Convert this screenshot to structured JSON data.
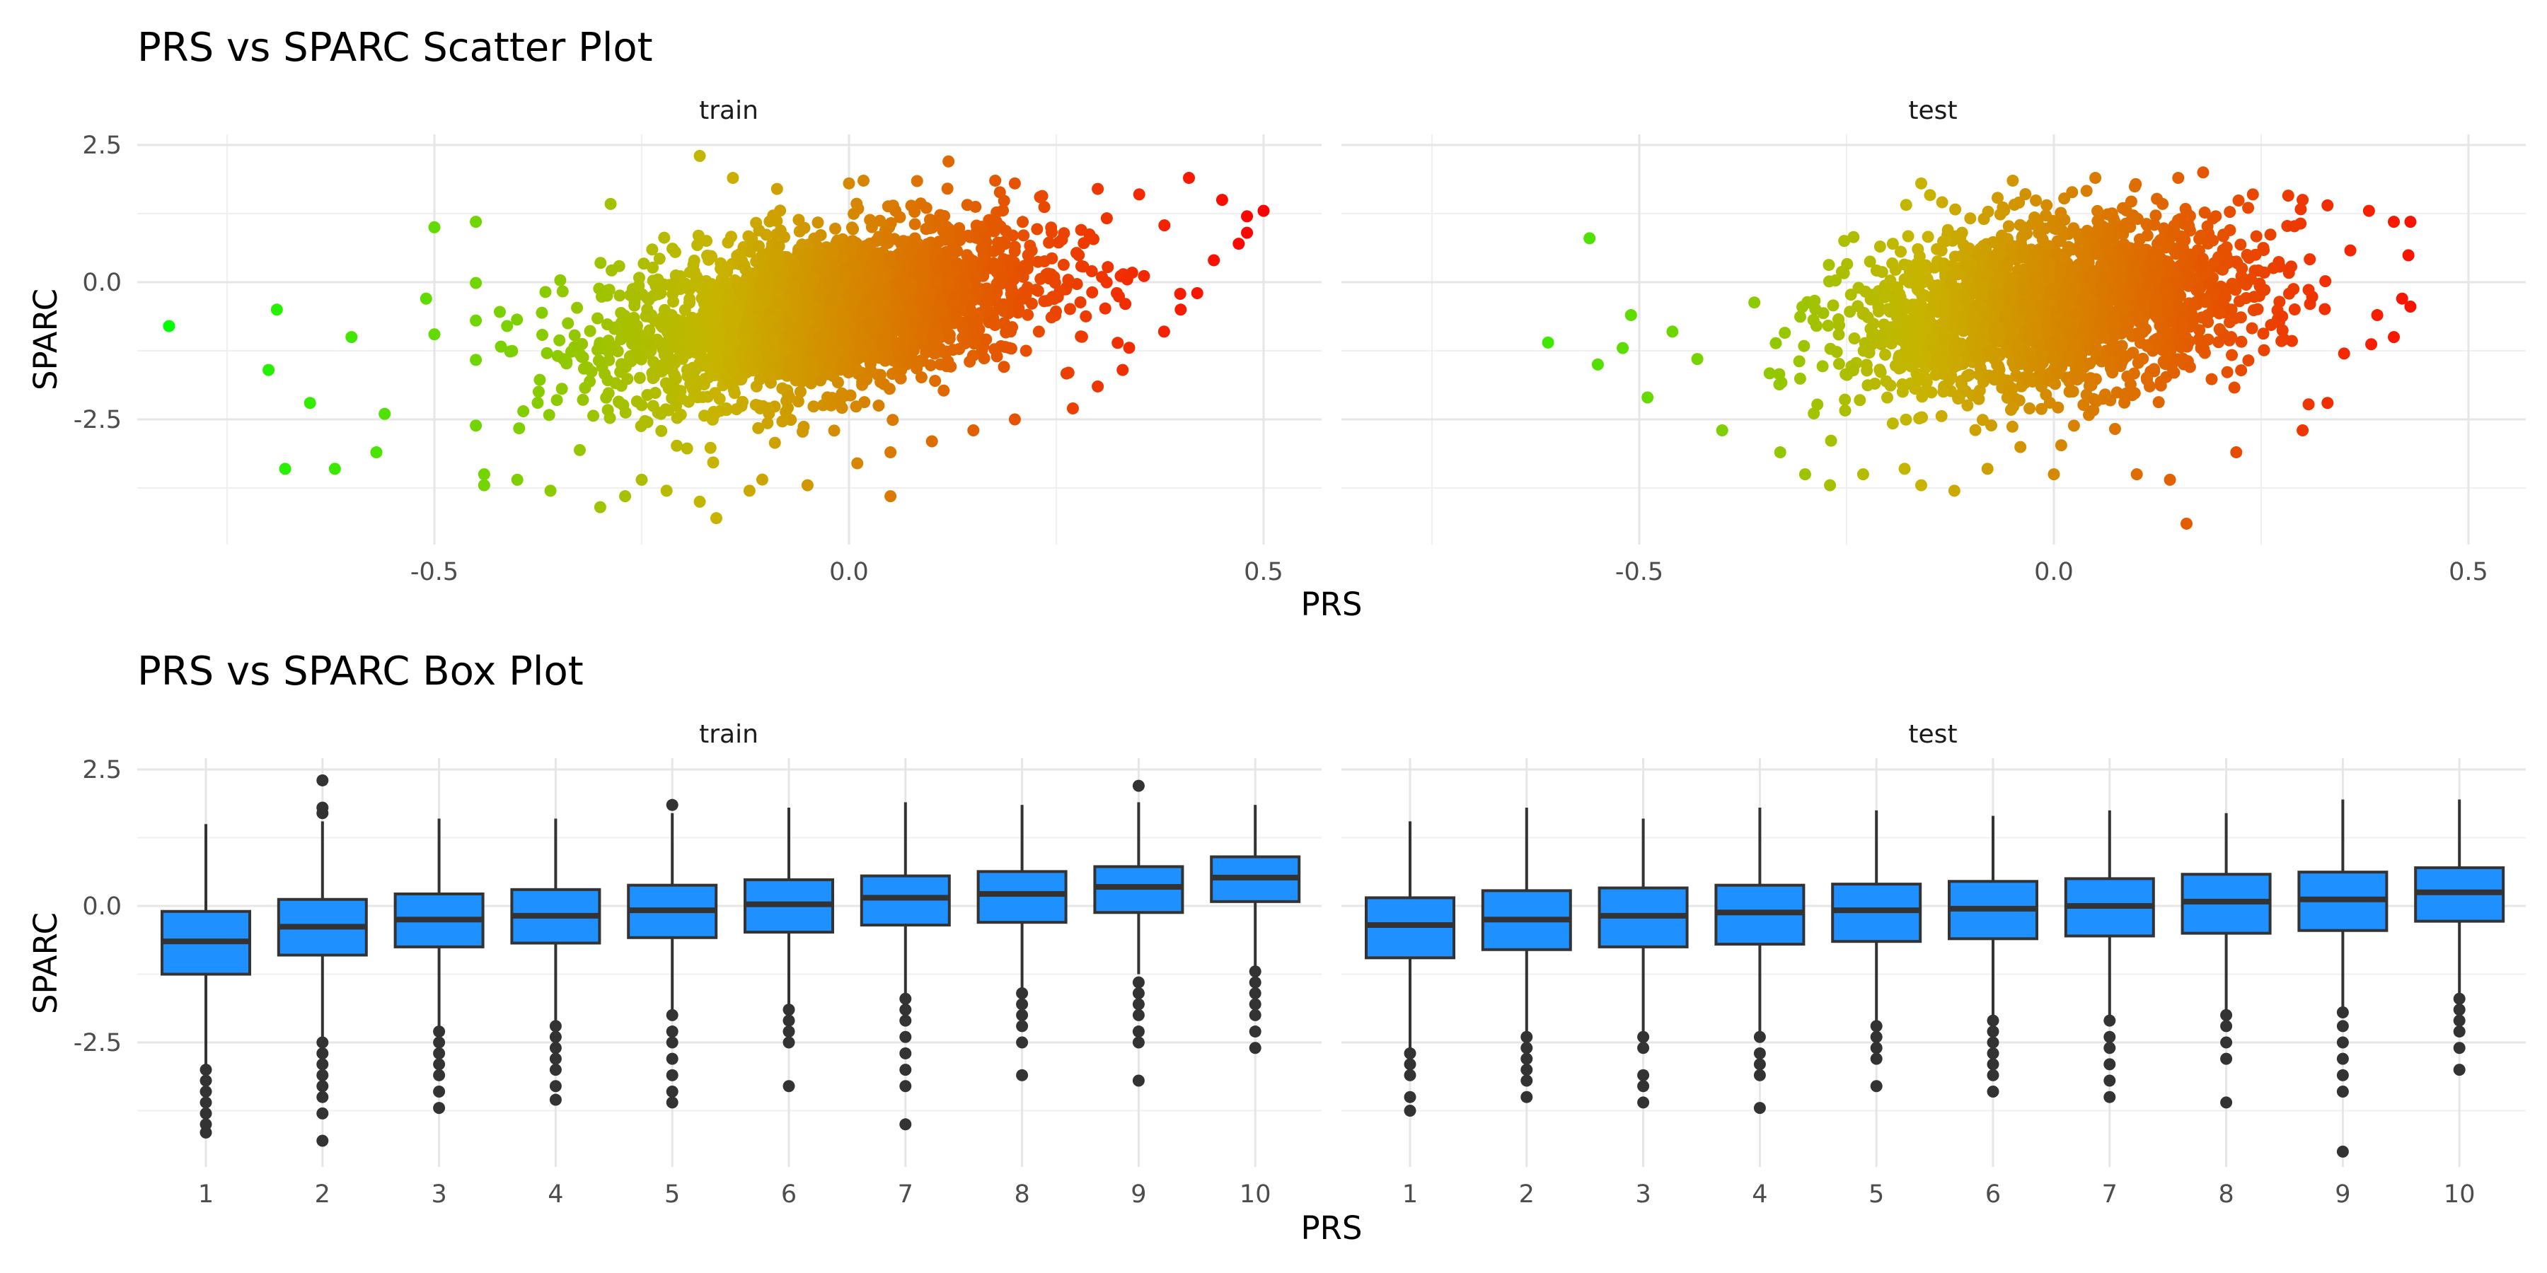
{
  "chart_data": [
    {
      "type": "scatter",
      "title": "PRS vs SPARC Scatter Plot",
      "xlabel": "PRS",
      "ylabel": "SPARC",
      "facets": [
        "train",
        "test"
      ],
      "xlim": [
        -0.84,
        0.54
      ],
      "ylim": [
        -4.5,
        2.5
      ],
      "x_ticks": [
        "-0.5",
        "0.0",
        "0.5"
      ],
      "y_ticks": [
        "2.5",
        "0.0",
        "-2.5"
      ],
      "grid": true,
      "legend": "none",
      "color_scale": {
        "low": "#00ff00",
        "mid": "#c8b400",
        "high": "#ff0000",
        "mapped_to": "PRS"
      },
      "series": [
        {
          "facet": "train",
          "points": [
            [
              -0.82,
              -0.8
            ],
            [
              -0.69,
              -0.5
            ],
            [
              -0.7,
              -1.6
            ],
            [
              -0.68,
              -3.4
            ],
            [
              -0.62,
              -3.4
            ],
            [
              -0.65,
              -2.2
            ],
            [
              -0.6,
              -1.0
            ],
            [
              -0.57,
              -3.1
            ],
            [
              -0.56,
              -2.4
            ],
            [
              -0.5,
              1.0
            ],
            [
              -0.5,
              -0.95
            ],
            [
              -0.51,
              -0.3
            ],
            [
              -0.45,
              1.1
            ],
            [
              -0.44,
              -3.5
            ],
            [
              -0.44,
              -3.7
            ],
            [
              -0.4,
              -3.6
            ],
            [
              -0.36,
              -3.8
            ],
            [
              -0.3,
              -4.1
            ],
            [
              -0.27,
              -3.9
            ],
            [
              -0.25,
              -3.6
            ],
            [
              -0.22,
              -3.8
            ],
            [
              -0.18,
              -4.0
            ],
            [
              -0.16,
              -4.3
            ],
            [
              -0.12,
              -3.8
            ],
            [
              -0.05,
              -3.7
            ],
            [
              0.01,
              -3.3
            ],
            [
              0.05,
              -3.9
            ],
            [
              -0.18,
              2.3
            ],
            [
              -0.14,
              1.9
            ],
            [
              0.0,
              1.8
            ],
            [
              0.12,
              2.2
            ],
            [
              0.2,
              1.8
            ],
            [
              0.3,
              1.7
            ],
            [
              0.41,
              1.9
            ],
            [
              0.35,
              1.6
            ],
            [
              0.45,
              1.5
            ],
            [
              0.5,
              1.3
            ],
            [
              0.48,
              1.2
            ],
            [
              0.48,
              0.9
            ],
            [
              0.47,
              0.7
            ],
            [
              0.44,
              0.4
            ],
            [
              0.42,
              -0.2
            ],
            [
              0.4,
              -0.5
            ],
            [
              0.38,
              -0.9
            ],
            [
              0.33,
              -1.6
            ],
            [
              0.3,
              -1.9
            ],
            [
              0.27,
              -2.3
            ],
            [
              0.2,
              -2.5
            ],
            [
              0.15,
              -2.7
            ],
            [
              0.1,
              -2.9
            ],
            [
              0.05,
              -3.1
            ]
          ]
        },
        {
          "facet": "test",
          "points": [
            [
              -0.61,
              -1.1
            ],
            [
              -0.56,
              0.8
            ],
            [
              -0.55,
              -1.5
            ],
            [
              -0.52,
              -1.2
            ],
            [
              -0.51,
              -0.6
            ],
            [
              -0.49,
              -2.1
            ],
            [
              -0.46,
              -0.9
            ],
            [
              -0.43,
              -1.4
            ],
            [
              -0.4,
              -2.7
            ],
            [
              -0.33,
              -3.1
            ],
            [
              -0.3,
              -3.5
            ],
            [
              -0.27,
              -3.7
            ],
            [
              -0.23,
              -3.5
            ],
            [
              -0.18,
              -3.4
            ],
            [
              -0.16,
              -3.7
            ],
            [
              -0.12,
              -3.8
            ],
            [
              -0.08,
              -3.4
            ],
            [
              0.0,
              -3.5
            ],
            [
              0.1,
              -3.5
            ],
            [
              0.14,
              -3.6
            ],
            [
              0.16,
              -4.4
            ],
            [
              0.22,
              -3.1
            ],
            [
              0.3,
              -2.7
            ],
            [
              0.33,
              -2.2
            ],
            [
              -0.16,
              1.8
            ],
            [
              0.05,
              1.9
            ],
            [
              0.15,
              1.9
            ],
            [
              0.18,
              2.0
            ],
            [
              0.24,
              1.6
            ],
            [
              0.3,
              1.5
            ],
            [
              0.33,
              1.4
            ],
            [
              0.38,
              1.3
            ],
            [
              0.41,
              1.1
            ],
            [
              0.43,
              1.1
            ],
            [
              0.42,
              -0.3
            ],
            [
              0.39,
              -0.6
            ],
            [
              0.41,
              -1.0
            ],
            [
              0.35,
              -1.3
            ]
          ]
        }
      ]
    },
    {
      "type": "box",
      "title": "PRS vs SPARC Box Plot",
      "xlabel": "PRS",
      "ylabel": "SPARC",
      "facets": [
        "train",
        "test"
      ],
      "categories": [
        "1",
        "2",
        "3",
        "4",
        "5",
        "6",
        "7",
        "8",
        "9",
        "10"
      ],
      "ylim": [
        -4.5,
        2.5
      ],
      "y_ticks": [
        "2.5",
        "0.0",
        "-2.5"
      ],
      "grid": true,
      "fill_color": "#1f90ff",
      "series": [
        {
          "facet": "train",
          "boxes": [
            {
              "q1": -1.25,
              "median": -0.65,
              "q3": -0.1,
              "whisker_low": -2.9,
              "whisker_high": 1.5,
              "outliers": [
                -3.0,
                -3.2,
                -3.4,
                -3.6,
                -3.8,
                -4.0,
                -4.15
              ]
            },
            {
              "q1": -0.9,
              "median": -0.38,
              "q3": 0.12,
              "whisker_low": -2.4,
              "whisker_high": 1.55,
              "outliers": [
                1.7,
                1.8,
                2.3,
                -2.5,
                -2.7,
                -2.9,
                -3.1,
                -3.3,
                -3.5,
                -3.8,
                -4.3
              ]
            },
            {
              "q1": -0.75,
              "median": -0.25,
              "q3": 0.22,
              "whisker_low": -2.2,
              "whisker_high": 1.6,
              "outliers": [
                -2.3,
                -2.5,
                -2.7,
                -2.9,
                -3.1,
                -3.4,
                -3.7
              ]
            },
            {
              "q1": -0.68,
              "median": -0.18,
              "q3": 0.3,
              "whisker_low": -2.1,
              "whisker_high": 1.6,
              "outliers": [
                -2.2,
                -2.4,
                -2.6,
                -2.8,
                -3.0,
                -3.3,
                -3.55
              ]
            },
            {
              "q1": -0.58,
              "median": -0.08,
              "q3": 0.38,
              "whisker_low": -1.9,
              "whisker_high": 1.7,
              "outliers": [
                1.85,
                -2.0,
                -2.3,
                -2.5,
                -2.8,
                -3.1,
                -3.4,
                -3.6
              ]
            },
            {
              "q1": -0.48,
              "median": 0.03,
              "q3": 0.48,
              "whisker_low": -1.8,
              "whisker_high": 1.8,
              "outliers": [
                -1.9,
                -2.1,
                -2.3,
                -2.5,
                -3.3
              ]
            },
            {
              "q1": -0.35,
              "median": 0.15,
              "q3": 0.55,
              "whisker_low": -1.6,
              "whisker_high": 1.9,
              "outliers": [
                -1.7,
                -1.9,
                -2.1,
                -2.4,
                -2.7,
                -3.0,
                -3.3,
                -4.0
              ]
            },
            {
              "q1": -0.3,
              "median": 0.22,
              "q3": 0.63,
              "whisker_low": -1.5,
              "whisker_high": 1.85,
              "outliers": [
                -1.6,
                -1.8,
                -2.0,
                -2.2,
                -2.5,
                -3.1
              ]
            },
            {
              "q1": -0.12,
              "median": 0.35,
              "q3": 0.72,
              "whisker_low": -1.25,
              "whisker_high": 1.9,
              "outliers": [
                2.2,
                -1.4,
                -1.6,
                -1.8,
                -2.0,
                -2.3,
                -2.5,
                -3.2
              ]
            },
            {
              "q1": 0.08,
              "median": 0.52,
              "q3": 0.9,
              "whisker_low": -1.1,
              "whisker_high": 1.85,
              "outliers": [
                -1.2,
                -1.4,
                -1.6,
                -1.8,
                -2.0,
                -2.3,
                -2.6
              ]
            }
          ]
        },
        {
          "facet": "test",
          "boxes": [
            {
              "q1": -0.95,
              "median": -0.35,
              "q3": 0.15,
              "whisker_low": -2.6,
              "whisker_high": 1.55,
              "outliers": [
                -2.7,
                -2.9,
                -3.1,
                -3.5,
                -3.75
              ]
            },
            {
              "q1": -0.8,
              "median": -0.25,
              "q3": 0.28,
              "whisker_low": -2.3,
              "whisker_high": 1.8,
              "outliers": [
                -2.4,
                -2.6,
                -2.8,
                -3.0,
                -3.2,
                -3.5
              ]
            },
            {
              "q1": -0.75,
              "median": -0.18,
              "q3": 0.33,
              "whisker_low": -2.3,
              "whisker_high": 1.6,
              "outliers": [
                -2.4,
                -2.6,
                -3.1,
                -3.3,
                -3.6
              ]
            },
            {
              "q1": -0.7,
              "median": -0.12,
              "q3": 0.38,
              "whisker_low": -2.3,
              "whisker_high": 1.8,
              "outliers": [
                -2.4,
                -2.7,
                -2.9,
                -3.1,
                -3.7
              ]
            },
            {
              "q1": -0.65,
              "median": -0.08,
              "q3": 0.4,
              "whisker_low": -2.1,
              "whisker_high": 1.75,
              "outliers": [
                -2.2,
                -2.4,
                -2.6,
                -2.8,
                -3.3
              ]
            },
            {
              "q1": -0.6,
              "median": -0.05,
              "q3": 0.45,
              "whisker_low": -2.0,
              "whisker_high": 1.65,
              "outliers": [
                -2.1,
                -2.3,
                -2.5,
                -2.7,
                -2.9,
                -3.1,
                -3.4
              ]
            },
            {
              "q1": -0.55,
              "median": 0.0,
              "q3": 0.5,
              "whisker_low": -2.0,
              "whisker_high": 1.75,
              "outliers": [
                -2.1,
                -2.4,
                -2.6,
                -2.9,
                -3.2,
                -3.5
              ]
            },
            {
              "q1": -0.5,
              "median": 0.08,
              "q3": 0.58,
              "whisker_low": -1.9,
              "whisker_high": 1.7,
              "outliers": [
                -2.0,
                -2.2,
                -2.5,
                -2.8,
                -3.6
              ]
            },
            {
              "q1": -0.45,
              "median": 0.12,
              "q3": 0.62,
              "whisker_low": -1.85,
              "whisker_high": 1.95,
              "outliers": [
                -1.95,
                -2.2,
                -2.5,
                -2.8,
                -3.1,
                -3.4,
                -4.5
              ]
            },
            {
              "q1": -0.28,
              "median": 0.25,
              "q3": 0.7,
              "whisker_low": -1.6,
              "whisker_high": 1.95,
              "outliers": [
                -1.7,
                -1.9,
                -2.1,
                -2.3,
                -2.6,
                -3.0
              ]
            }
          ]
        }
      ]
    }
  ]
}
